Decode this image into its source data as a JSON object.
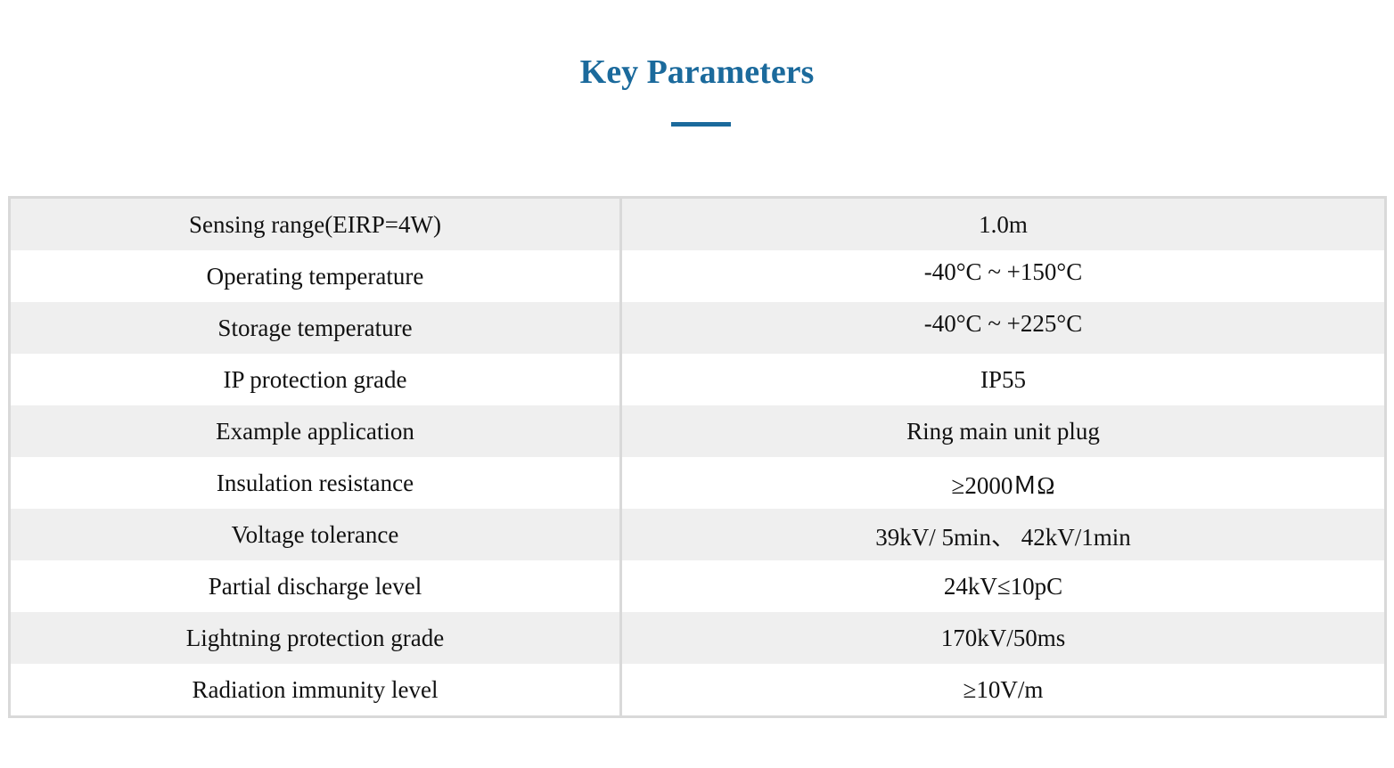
{
  "title": "Key Parameters",
  "colors": {
    "accent": "#1b6a9c",
    "row_shaded": "#efefef",
    "border": "#d9d9d9"
  },
  "rows": [
    {
      "label": "Sensing range(EIRP=4W)",
      "value": "1.0m"
    },
    {
      "label": "Operating temperature",
      "value": "-40°C ~ +150°C"
    },
    {
      "label": "Storage temperature",
      "value": "-40°C ~ +225°C"
    },
    {
      "label": "IP protection grade",
      "value": "IP55"
    },
    {
      "label": "Example application",
      "value": "Ring main unit plug"
    },
    {
      "label": "Insulation resistance",
      "value": "≥2000ＭΩ"
    },
    {
      "label": "Voltage tolerance",
      "value": "39kV/ 5min、 42kV/1min"
    },
    {
      "label": "Partial discharge level",
      "value": "24kV≤10pC"
    },
    {
      "label": "Lightning protection grade",
      "value": "170kV/50ms"
    },
    {
      "label": "Radiation immunity level",
      "value": "≥10V/m"
    }
  ]
}
